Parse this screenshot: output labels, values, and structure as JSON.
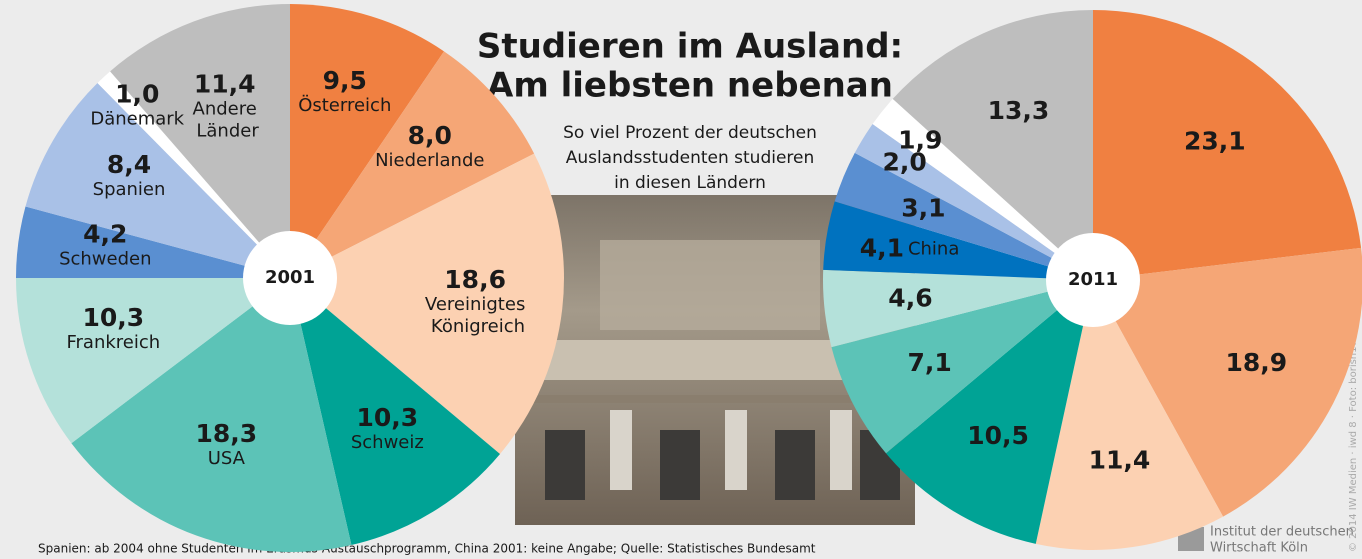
{
  "title": [
    "Studieren im Ausland:",
    "Am liebsten nebenan"
  ],
  "subtitle": [
    "So viel Prozent der deutschen",
    "Auslandsstudenten studieren",
    "in diesen Ländern"
  ],
  "footnote": "Spanien: ab 2004 ohne Studenten im Erasmus-Austauschprogramm, China 2001: keine Angabe; Quelle: Statistisches Bundesamt",
  "logo": [
    "Institut der deutschen",
    "Wirtschaft Köln"
  ],
  "credit": "© 2014 IW Medien · iwd 8 · Foto: borish17 - Fotolia.com",
  "chart_data": [
    {
      "type": "pie",
      "label": "2001",
      "categories": [
        "Österreich",
        "Niederlande",
        "Vereinigtes Königreich",
        "Schweiz",
        "USA",
        "Frankreich",
        "Schweden",
        "Spanien",
        "Dänemark",
        "Andere Länder"
      ],
      "values": [
        9.5,
        8.0,
        18.6,
        10.3,
        18.3,
        10.3,
        4.2,
        8.4,
        1.0,
        11.4
      ],
      "value_labels": [
        "9,5",
        "8,0",
        "18,6",
        "10,3",
        "18,3",
        "10,3",
        "4,2",
        "8,4",
        "1,0",
        "11,4"
      ],
      "colors": [
        "#f08041",
        "#f5a676",
        "#fcd1b2",
        "#00a395",
        "#5cc3b7",
        "#b4e1da",
        "#5a8fd1",
        "#a9c1e7",
        "#ffffff",
        "#bebebe"
      ]
    },
    {
      "type": "pie",
      "label": "2011",
      "categories": [
        null,
        null,
        null,
        null,
        null,
        null,
        "China",
        null,
        null,
        null,
        null
      ],
      "values": [
        23.1,
        18.9,
        11.4,
        10.5,
        7.1,
        4.6,
        4.1,
        3.1,
        2.0,
        1.9,
        13.3
      ],
      "value_labels": [
        "23,1",
        "18,9",
        "11,4",
        "10,5",
        "7,1",
        "4,6",
        "4,1",
        "3,1",
        "2,0",
        "1,9",
        "13,3"
      ],
      "colors": [
        "#f08041",
        "#f5a676",
        "#fcd1b2",
        "#00a395",
        "#5cc3b7",
        "#b4e1da",
        "#0072bf",
        "#5a8fd1",
        "#a9c1e7",
        "#ffffff",
        "#bebebe"
      ]
    }
  ]
}
